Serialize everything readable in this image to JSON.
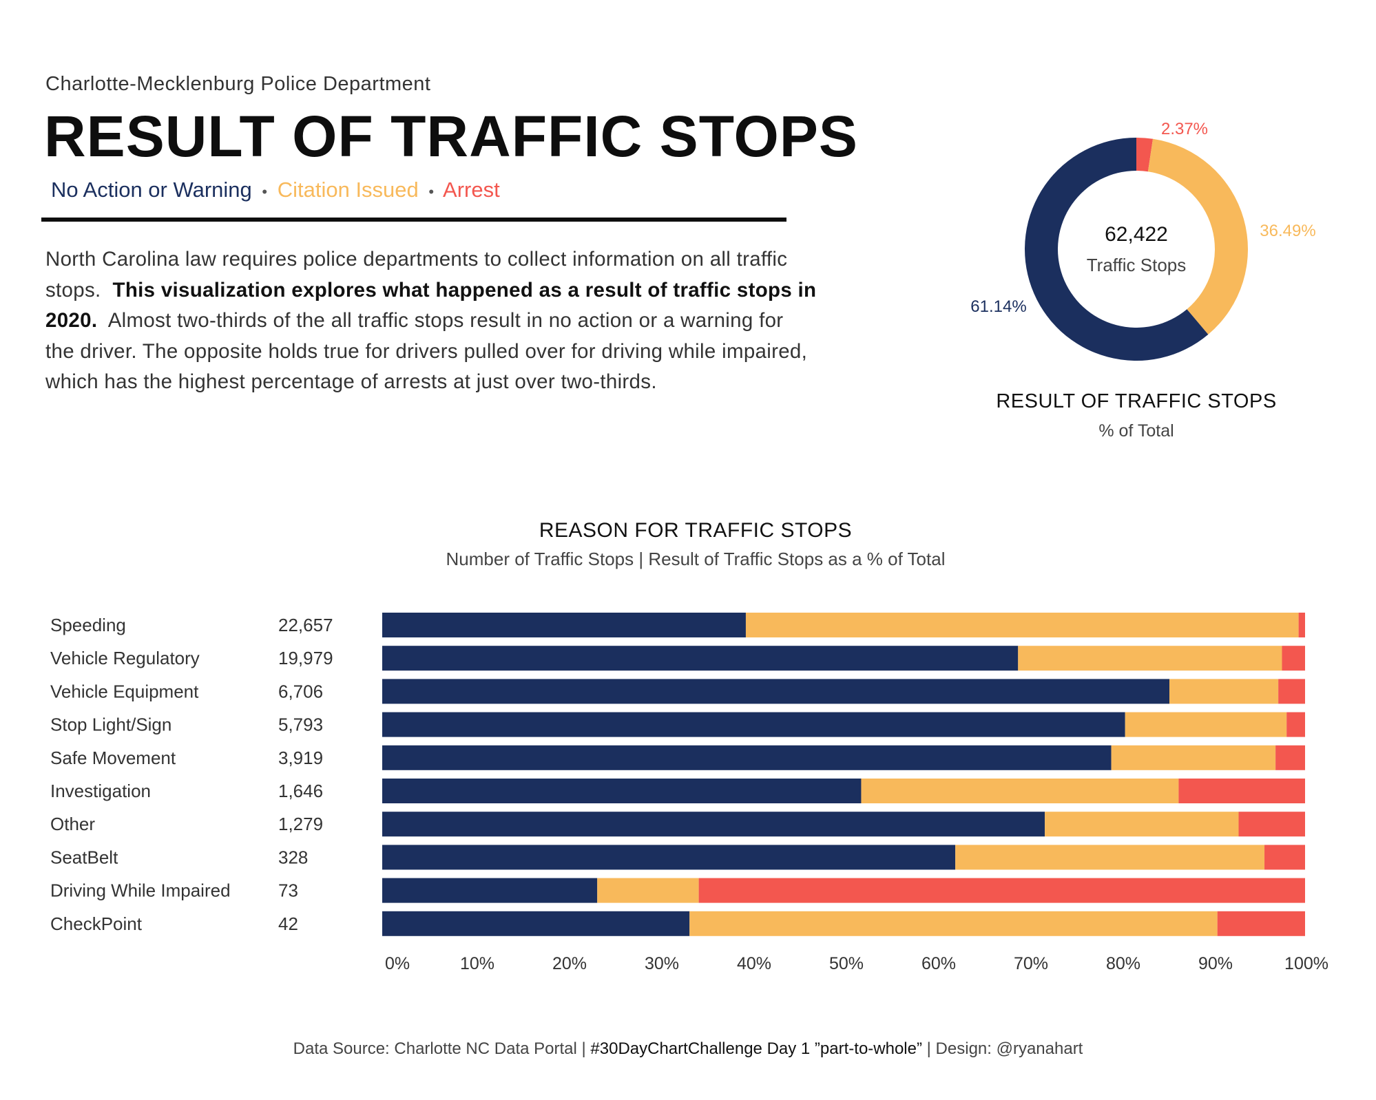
{
  "header": {
    "department": "Charlotte-Mecklenburg Police Department",
    "title": "RESULT OF TRAFFIC STOPS",
    "legend": [
      {
        "label": "No Action or Warning",
        "color": "#1b2f5e"
      },
      {
        "label": "Citation Issued",
        "color": "#f8b95b"
      },
      {
        "label": "Arrest",
        "color": "#f3574f"
      }
    ],
    "legend_separator": "•"
  },
  "description": {
    "part1": "North Carolina law requires police departments to collect information on all traffic stops.",
    "bold": "This visualization explores what happened as a result of traffic stops in 2020.",
    "part2": "Almost two-thirds of the all traffic stops result in no action or a warning for the driver.  The opposite holds true for drivers pulled over for driving while impaired, which has the highest percentage of arrests at just over two-thirds."
  },
  "footer": {
    "source": "Data Source: Charlotte NC Data Portal | ",
    "challenge": "#30DayChartChallenge Day 1 ”part-to-whole”",
    "design": " | Design: @ryanahart"
  },
  "chart_data": [
    {
      "type": "pie",
      "style": "donut",
      "title": "RESULT OF TRAFFIC STOPS",
      "subtitle": "% of Total",
      "center_value": "62,422",
      "center_label": "Traffic Stops",
      "slices": [
        {
          "name": "Arrest",
          "value": 2.37,
          "label": "2.37%",
          "color": "#f3574f"
        },
        {
          "name": "Citation Issued",
          "value": 36.49,
          "label": "36.49%",
          "color": "#f8b95b"
        },
        {
          "name": "No Action or Warning",
          "value": 61.14,
          "label": "61.14%",
          "color": "#1b2f5e"
        }
      ]
    },
    {
      "type": "bar",
      "orientation": "horizontal",
      "stacked": "percent",
      "title": "REASON FOR TRAFFIC STOPS",
      "subtitle": "Number of Traffic Stops | Result of Traffic Stops as a % of Total",
      "categories": [
        "Speeding",
        "Vehicle Regulatory",
        "Vehicle Equipment",
        "Stop Light/Sign",
        "Safe Movement",
        "Investigation",
        "Other",
        "SeatBelt",
        "Driving While Impaired",
        "CheckPoint"
      ],
      "counts": [
        "22,657",
        "19,979",
        "6,706",
        "5,793",
        "3,919",
        "1,646",
        "1,279",
        "328",
        "73",
        "42"
      ],
      "series": [
        {
          "name": "No Action or Warning",
          "color": "#1b2f5e",
          "values": [
            39.4,
            68.9,
            85.3,
            80.5,
            79.0,
            51.9,
            71.8,
            62.1,
            23.3,
            33.3
          ]
        },
        {
          "name": "Citation Issued",
          "color": "#f8b95b",
          "values": [
            59.9,
            28.6,
            11.8,
            17.5,
            17.8,
            34.4,
            21.0,
            33.5,
            11.0,
            57.2
          ]
        },
        {
          "name": "Arrest",
          "color": "#f3574f",
          "values": [
            0.7,
            2.5,
            2.9,
            2.0,
            3.2,
            13.7,
            7.2,
            4.4,
            65.7,
            9.5
          ]
        }
      ],
      "xticks": [
        "0%",
        "10%",
        "20%",
        "30%",
        "40%",
        "50%",
        "60%",
        "70%",
        "80%",
        "90%",
        "100%"
      ],
      "xlim": [
        0,
        100
      ]
    }
  ]
}
